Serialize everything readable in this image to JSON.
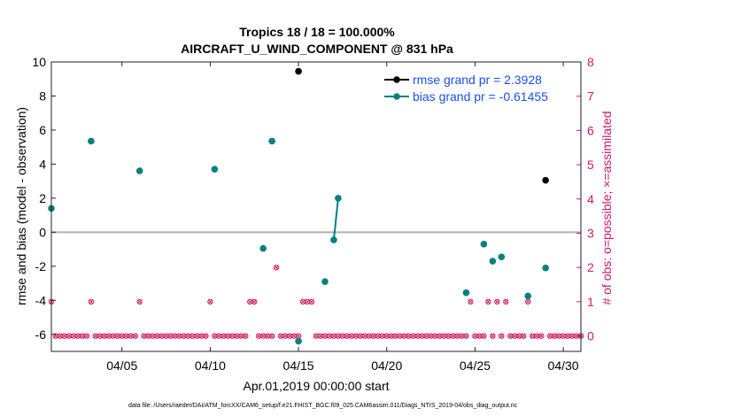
{
  "chart_data": {
    "type": "scatter",
    "title_line1": "Tropics 18 / 18 = 100.000%",
    "title_line2": "AIRCRAFT_U_WIND_COMPONENT @ 831 hPa",
    "xlabel": "Apr.01,2019 00:00:00 start",
    "ylabel_left": "rmse and bias (model - observation)",
    "ylabel_right": "# of obs: o=possible; ×=assimilated",
    "footer": "data file: /Users/raeder/DAI/ATM_forcXX/CAM6_setup/f.e21.FHIST_BGC.f09_025.CAM6assim.011/Diags_NTrS_2019-04/obs_diag_output.nc",
    "xlim": [
      1,
      31
    ],
    "ylim_left": [
      -7,
      10
    ],
    "ylim_right": [
      -0.45,
      8
    ],
    "x_ticks": [
      {
        "x": 5,
        "label": "04/05"
      },
      {
        "x": 10,
        "label": "04/10"
      },
      {
        "x": 15,
        "label": "04/15"
      },
      {
        "x": 20,
        "label": "04/20"
      },
      {
        "x": 25,
        "label": "04/25"
      },
      {
        "x": 30,
        "label": "04/30"
      }
    ],
    "y_ticks_left": [
      -6,
      -4,
      -2,
      0,
      2,
      4,
      6,
      8,
      10
    ],
    "y_ticks_right": [
      0,
      1,
      2,
      3,
      4,
      5,
      6,
      7,
      8
    ],
    "legend": [
      {
        "name": "rmse",
        "label": "rmse grand pr = 2.3928"
      },
      {
        "name": "bias",
        "label": "bias grand pr = -0.61455"
      }
    ],
    "series": [
      {
        "name": "rmse",
        "color": "#000000",
        "points": [
          [
            15.0,
            9.45
          ],
          [
            29.0,
            3.05
          ]
        ]
      },
      {
        "name": "bias",
        "color": "#008080",
        "points": [
          [
            1.0,
            1.4
          ],
          [
            3.25,
            5.35
          ],
          [
            6.0,
            3.6
          ],
          [
            10.25,
            3.7
          ],
          [
            13.0,
            -0.95
          ],
          [
            13.5,
            5.35
          ],
          [
            15.0,
            -6.4
          ],
          [
            16.5,
            -2.9
          ],
          [
            17.0,
            -0.45
          ],
          [
            17.25,
            2.0
          ],
          [
            24.5,
            -3.55
          ],
          [
            25.5,
            -0.7
          ],
          [
            26.0,
            -1.7
          ],
          [
            26.5,
            -1.45
          ],
          [
            28.0,
            -3.75
          ],
          [
            29.0,
            -2.1
          ]
        ]
      },
      {
        "name": "obs_count",
        "color": "#d11a5f",
        "axis": "right",
        "x_start": 1.0,
        "x_step": 0.25,
        "values": [
          1,
          0,
          0,
          0,
          0,
          0,
          0,
          0,
          0,
          1,
          0,
          0,
          0,
          0,
          0,
          0,
          0,
          0,
          0,
          0,
          1,
          0,
          0,
          0,
          0,
          0,
          0,
          0,
          0,
          0,
          0,
          0,
          0,
          0,
          0,
          0,
          1,
          0,
          0,
          0,
          0,
          0,
          0,
          0,
          0,
          1,
          1,
          0,
          0,
          0,
          0,
          2,
          0,
          0,
          0,
          0,
          0,
          1,
          1,
          1,
          0,
          0,
          0,
          0,
          0,
          0,
          0,
          0,
          0,
          0,
          0,
          0,
          0,
          0,
          0,
          0,
          0,
          0,
          0,
          0,
          0,
          0,
          0,
          0,
          0,
          0,
          0,
          0,
          0,
          0,
          0,
          0,
          0,
          0,
          0,
          1,
          0,
          0,
          0,
          1,
          0,
          1,
          0,
          1,
          0,
          0,
          0,
          0,
          1,
          0,
          0,
          0,
          2,
          0,
          0,
          0,
          0,
          0,
          0,
          0,
          0
        ]
      }
    ]
  }
}
